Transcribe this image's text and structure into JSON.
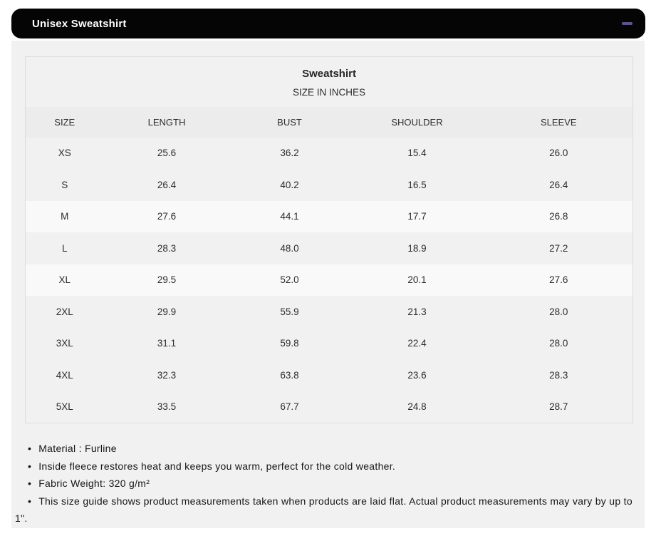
{
  "accordion": {
    "title": "Unisex Sweatshirt",
    "state": "expanded"
  },
  "size_chart": {
    "caption_title": "Sweatshirt",
    "caption_subtitle": "SIZE IN INCHES",
    "columns": [
      "SIZE",
      "LENGTH",
      "BUST",
      "SHOULDER",
      "SLEEVE"
    ],
    "rows": [
      [
        "XS",
        "25.6",
        "36.2",
        "15.4",
        "26.0"
      ],
      [
        "S",
        "26.4",
        "40.2",
        "16.5",
        "26.4"
      ],
      [
        "M",
        "27.6",
        "44.1",
        "17.7",
        "26.8"
      ],
      [
        "L",
        "28.3",
        "48.0",
        "18.9",
        "27.2"
      ],
      [
        "XL",
        "29.5",
        "52.0",
        "20.1",
        "27.6"
      ],
      [
        "2XL",
        "29.9",
        "55.9",
        "21.3",
        "28.0"
      ],
      [
        "3XL",
        "31.1",
        "59.8",
        "22.4",
        "28.0"
      ],
      [
        "4XL",
        "32.3",
        "63.8",
        "23.6",
        "28.3"
      ],
      [
        "5XL",
        "33.5",
        "67.7",
        "24.8",
        "28.7"
      ]
    ],
    "highlighted_rows": [
      "M",
      "XL"
    ]
  },
  "notes": [
    "Material : Furline",
    "Inside fleece restores heat and keeps you warm, perfect for the cold weather.",
    "Fabric Weight: 320 g/m²",
    "This size guide shows product measurements taken when products are laid flat. Actual product measurements may vary by up to 1\"."
  ],
  "colors": {
    "accent": "#5a5496",
    "header_bg": "#050505",
    "panel_bg": "#f1f1f1",
    "header_row_bg": "#ececec",
    "row_highlight": "#f9f9f9"
  }
}
